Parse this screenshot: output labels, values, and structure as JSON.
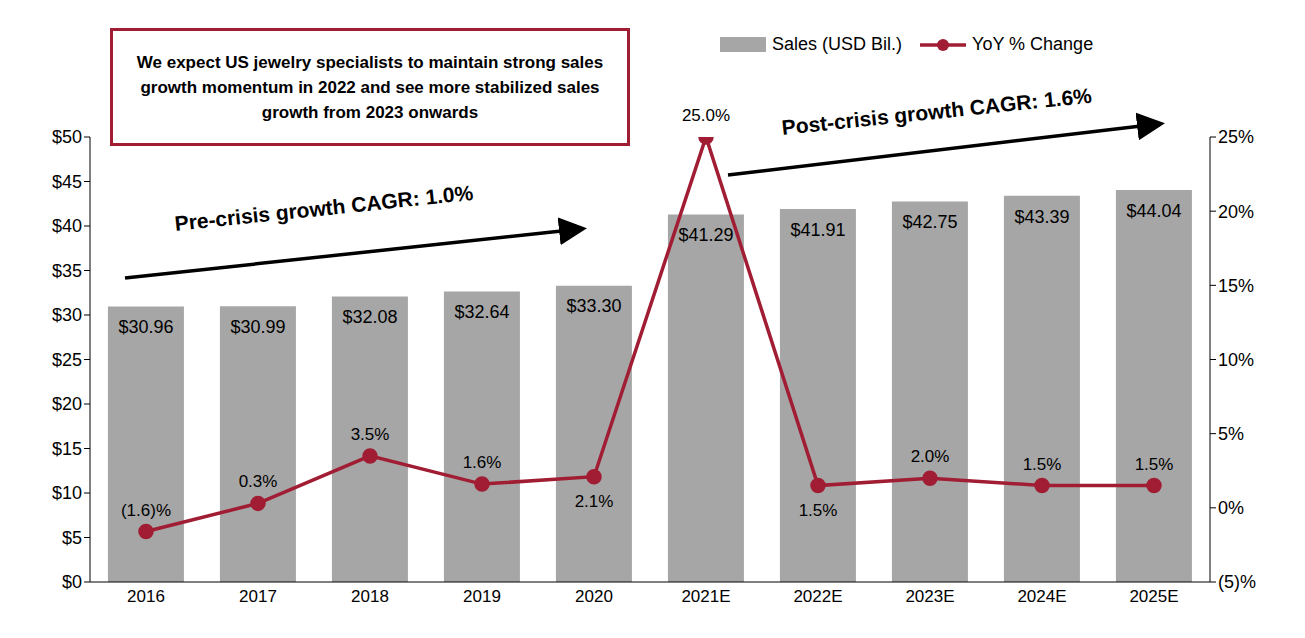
{
  "chart_data": {
    "type": "bar",
    "categories": [
      "2016",
      "2017",
      "2018",
      "2019",
      "2020",
      "2021E",
      "2022E",
      "2023E",
      "2024E",
      "2025E"
    ],
    "series": [
      {
        "name": "Sales (USD Bil.)",
        "type": "bar",
        "color": "#a6a6a6",
        "values": [
          30.96,
          30.99,
          32.08,
          32.64,
          33.3,
          41.29,
          41.91,
          42.75,
          43.39,
          44.04
        ],
        "value_labels": [
          "$30.96",
          "$30.99",
          "$32.08",
          "$32.64",
          "$33.30",
          "$41.29",
          "$41.91",
          "$42.75",
          "$43.39",
          "$44.04"
        ]
      },
      {
        "name": "YoY % Change",
        "type": "line",
        "axis": "y2",
        "color": "#a11d33",
        "marker": "circle",
        "values": [
          -1.6,
          0.3,
          3.5,
          1.6,
          2.1,
          25.0,
          1.5,
          2.0,
          1.5,
          1.5
        ],
        "value_labels": [
          "(1.6)%",
          "0.3%",
          "3.5%",
          "1.6%",
          "2.1%",
          "25.0%",
          "1.5%",
          "2.0%",
          "1.5%",
          "1.5%"
        ]
      }
    ],
    "ylim": [
      0,
      50
    ],
    "yticks": [
      {
        "value": 0,
        "label": "$0"
      },
      {
        "value": 5,
        "label": "$5"
      },
      {
        "value": 10,
        "label": "$10"
      },
      {
        "value": 15,
        "label": "$15"
      },
      {
        "value": 20,
        "label": "$20"
      },
      {
        "value": 25,
        "label": "$25"
      },
      {
        "value": 30,
        "label": "$30"
      },
      {
        "value": 35,
        "label": "$35"
      },
      {
        "value": 40,
        "label": "$40"
      },
      {
        "value": 45,
        "label": "$45"
      },
      {
        "value": 50,
        "label": "$50"
      }
    ],
    "y2lim": [
      -5,
      25
    ],
    "y2ticks": [
      {
        "value": -5,
        "label": "(5)%"
      },
      {
        "value": 0,
        "label": "0%"
      },
      {
        "value": 5,
        "label": "5%"
      },
      {
        "value": 10,
        "label": "10%"
      },
      {
        "value": 15,
        "label": "15%"
      },
      {
        "value": 20,
        "label": "20%"
      },
      {
        "value": 25,
        "label": "25%"
      }
    ],
    "annotations": [
      "We expect US jewelry specialists to maintain strong sales growth momentum in 2022 and see more stabilized sales growth from 2023 onwards",
      "Pre-crisis growth CAGR: 1.0%",
      "Post-crisis growth CAGR: 1.6%"
    ],
    "data_labels": true,
    "grid": false,
    "legend": "top-right"
  }
}
